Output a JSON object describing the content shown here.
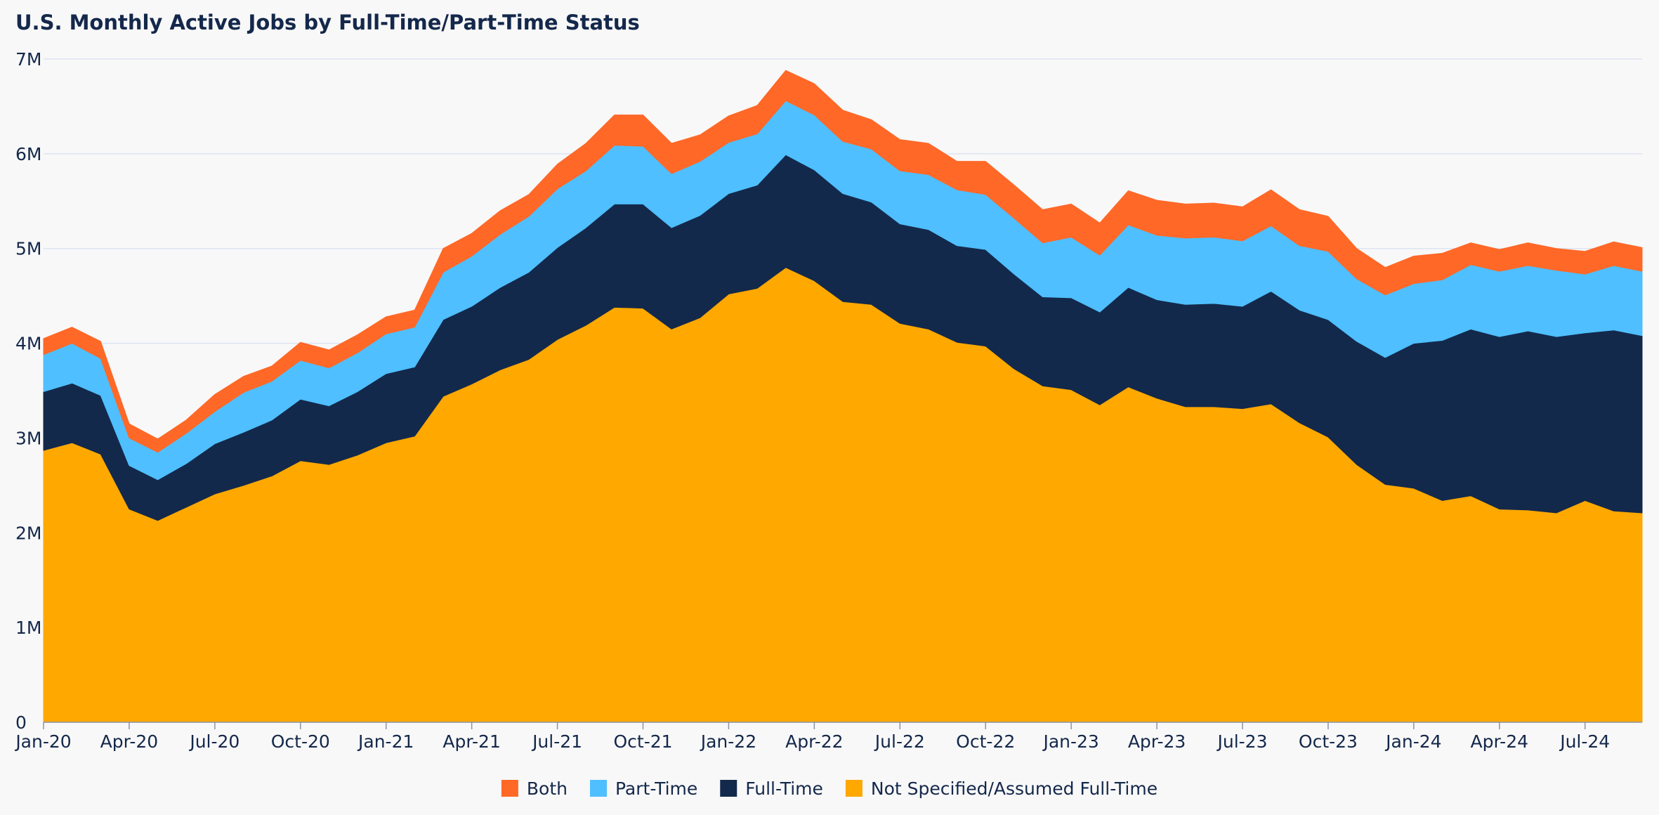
{
  "chart_data": {
    "type": "area",
    "stacked": true,
    "title": "U.S. Monthly Active Jobs by Full-Time/Part-Time Status",
    "xlabel": "",
    "ylabel": "",
    "ylim": [
      0,
      7000000
    ],
    "grid": true,
    "legend_position": "bottom",
    "y_ticks": [
      {
        "value": 0,
        "label": "0"
      },
      {
        "value": 1000000,
        "label": "1M"
      },
      {
        "value": 2000000,
        "label": "2M"
      },
      {
        "value": 3000000,
        "label": "3M"
      },
      {
        "value": 4000000,
        "label": "4M"
      },
      {
        "value": 5000000,
        "label": "5M"
      },
      {
        "value": 6000000,
        "label": "6M"
      },
      {
        "value": 7000000,
        "label": "7M"
      }
    ],
    "x": [
      "2020-01",
      "2020-02",
      "2020-03",
      "2020-04",
      "2020-05",
      "2020-06",
      "2020-07",
      "2020-08",
      "2020-09",
      "2020-10",
      "2020-11",
      "2020-12",
      "2021-01",
      "2021-02",
      "2021-03",
      "2021-04",
      "2021-05",
      "2021-06",
      "2021-07",
      "2021-08",
      "2021-09",
      "2021-10",
      "2021-11",
      "2021-12",
      "2022-01",
      "2022-02",
      "2022-03",
      "2022-04",
      "2022-05",
      "2022-06",
      "2022-07",
      "2022-08",
      "2022-09",
      "2022-10",
      "2022-11",
      "2022-12",
      "2023-01",
      "2023-02",
      "2023-03",
      "2023-04",
      "2023-05",
      "2023-06",
      "2023-07",
      "2023-08",
      "2023-09",
      "2023-10",
      "2023-11",
      "2023-12",
      "2024-01",
      "2024-02",
      "2024-03",
      "2024-04",
      "2024-05",
      "2024-06",
      "2024-07",
      "2024-08",
      "2024-09"
    ],
    "x_tick_labels": [
      {
        "index": 0,
        "label": "Jan-20"
      },
      {
        "index": 3,
        "label": "Apr-20"
      },
      {
        "index": 6,
        "label": "Jul-20"
      },
      {
        "index": 9,
        "label": "Oct-20"
      },
      {
        "index": 12,
        "label": "Jan-21"
      },
      {
        "index": 15,
        "label": "Apr-21"
      },
      {
        "index": 18,
        "label": "Jul-21"
      },
      {
        "index": 21,
        "label": "Oct-21"
      },
      {
        "index": 24,
        "label": "Jan-22"
      },
      {
        "index": 27,
        "label": "Apr-22"
      },
      {
        "index": 30,
        "label": "Jul-22"
      },
      {
        "index": 33,
        "label": "Oct-22"
      },
      {
        "index": 36,
        "label": "Jan-23"
      },
      {
        "index": 39,
        "label": "Apr-23"
      },
      {
        "index": 42,
        "label": "Jul-23"
      },
      {
        "index": 45,
        "label": "Oct-23"
      },
      {
        "index": 48,
        "label": "Jan-24"
      },
      {
        "index": 51,
        "label": "Apr-24"
      },
      {
        "index": 54,
        "label": "Jul-24"
      }
    ],
    "series": [
      {
        "name": "Not Specified/Assumed Full-Time",
        "color": "#ffa800",
        "values": [
          2870000,
          2950000,
          2830000,
          2250000,
          2130000,
          2270000,
          2410000,
          2500000,
          2600000,
          2760000,
          2720000,
          2820000,
          2950000,
          3020000,
          3440000,
          3570000,
          3720000,
          3830000,
          4040000,
          4190000,
          4380000,
          4370000,
          4150000,
          4270000,
          4520000,
          4580000,
          4800000,
          4660000,
          4440000,
          4410000,
          4210000,
          4150000,
          4010000,
          3970000,
          3730000,
          3550000,
          3510000,
          3350000,
          3540000,
          3420000,
          3330000,
          3330000,
          3310000,
          3360000,
          3160000,
          3010000,
          2720000,
          2510000,
          2470000,
          2340000,
          2390000,
          2250000,
          2240000,
          2210000,
          2340000,
          2230000,
          2210000
        ]
      },
      {
        "name": "Full-Time",
        "color": "#13294b",
        "values": [
          620000,
          630000,
          620000,
          460000,
          430000,
          460000,
          530000,
          560000,
          590000,
          650000,
          620000,
          670000,
          730000,
          730000,
          810000,
          820000,
          870000,
          920000,
          970000,
          1030000,
          1090000,
          1100000,
          1070000,
          1080000,
          1060000,
          1090000,
          1190000,
          1170000,
          1140000,
          1080000,
          1050000,
          1050000,
          1020000,
          1020000,
          1000000,
          940000,
          970000,
          980000,
          1050000,
          1040000,
          1080000,
          1090000,
          1080000,
          1190000,
          1190000,
          1240000,
          1300000,
          1340000,
          1530000,
          1690000,
          1760000,
          1820000,
          1890000,
          1860000,
          1770000,
          1910000,
          1870000
        ]
      },
      {
        "name": "Part-Time",
        "color": "#4fbfff",
        "values": [
          390000,
          420000,
          390000,
          290000,
          290000,
          320000,
          340000,
          420000,
          410000,
          410000,
          400000,
          410000,
          420000,
          420000,
          500000,
          530000,
          560000,
          590000,
          620000,
          600000,
          620000,
          610000,
          570000,
          570000,
          540000,
          540000,
          570000,
          580000,
          550000,
          560000,
          560000,
          580000,
          590000,
          580000,
          590000,
          570000,
          640000,
          600000,
          660000,
          680000,
          700000,
          700000,
          690000,
          690000,
          680000,
          720000,
          660000,
          660000,
          630000,
          640000,
          680000,
          690000,
          690000,
          700000,
          620000,
          680000,
          680000
        ]
      },
      {
        "name": "Both",
        "color": "#ff6827",
        "values": [
          170000,
          170000,
          180000,
          150000,
          140000,
          140000,
          180000,
          170000,
          160000,
          190000,
          190000,
          190000,
          180000,
          180000,
          250000,
          240000,
          250000,
          230000,
          260000,
          290000,
          320000,
          330000,
          320000,
          280000,
          280000,
          300000,
          320000,
          330000,
          330000,
          310000,
          330000,
          330000,
          300000,
          350000,
          350000,
          350000,
          350000,
          340000,
          360000,
          370000,
          360000,
          360000,
          360000,
          380000,
          380000,
          370000,
          320000,
          290000,
          290000,
          280000,
          230000,
          230000,
          240000,
          230000,
          240000,
          250000,
          250000
        ]
      }
    ],
    "legend": [
      "Both",
      "Part-Time",
      "Full-Time",
      "Not Specified/Assumed Full-Time"
    ]
  }
}
